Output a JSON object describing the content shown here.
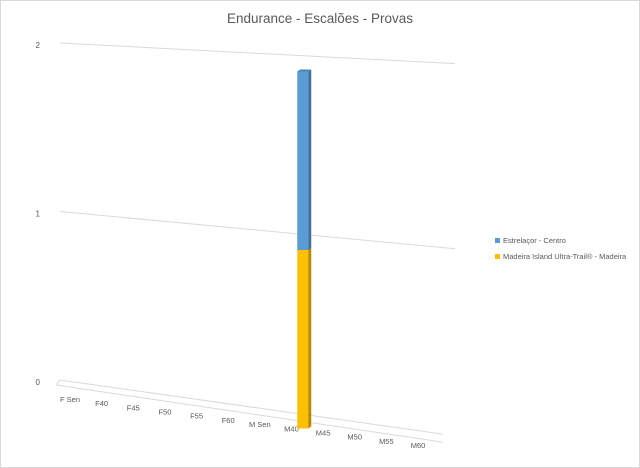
{
  "chart_data": {
    "type": "bar",
    "subtype": "stacked-3d",
    "title": "Endurance - Escalões - Provas",
    "categories": [
      "F Sen",
      "F40",
      "F45",
      "F50",
      "F55",
      "F60",
      "M Sen",
      "M40",
      "M45",
      "M50",
      "M55",
      "M60"
    ],
    "series": [
      {
        "name": "Madeira Island Ultra-Trail® - Madeira",
        "color": "#ffc000",
        "values": [
          0,
          0,
          0,
          0,
          0,
          0,
          0,
          1,
          0,
          0,
          0,
          0
        ]
      },
      {
        "name": "Estrelaçor - Centro",
        "color": "#5b9bd5",
        "values": [
          0,
          0,
          0,
          0,
          0,
          0,
          0,
          1,
          0,
          0,
          0,
          0
        ]
      }
    ],
    "yticks": [
      "0",
      "1",
      "2"
    ],
    "ylim": [
      0,
      2
    ],
    "grid": true,
    "legend": "right"
  }
}
